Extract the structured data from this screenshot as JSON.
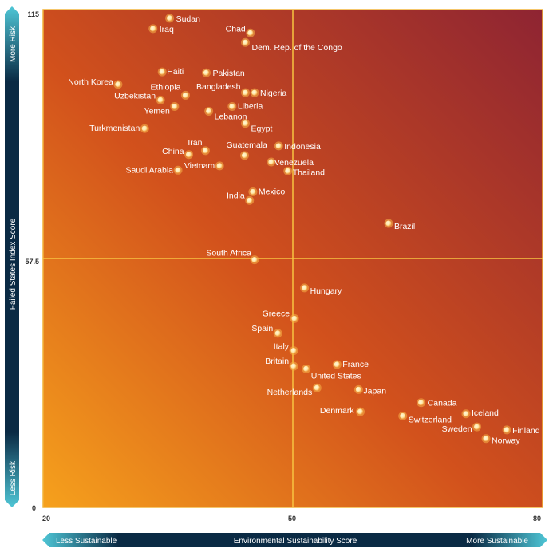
{
  "chart_data": {
    "type": "scatter",
    "title": "",
    "xlabel": "Environmental Sustainability Score",
    "ylabel": "Failed States Index Score",
    "xlim": [
      20,
      80
    ],
    "ylim": [
      0,
      115
    ],
    "x_ticks": [
      "20",
      "50",
      "80"
    ],
    "y_ticks": [
      "0",
      "57.5",
      "115"
    ],
    "quadrant_lines": {
      "x": 50,
      "y": 57.5
    },
    "x_axis_left_label": "Less Sustainable",
    "x_axis_right_label": "More Sustainable",
    "y_axis_top_label": "More Risk",
    "y_axis_bottom_label": "Less Risk",
    "grid": false,
    "colors": {
      "background_low": "#f6a11c",
      "background_mid": "#d2511c",
      "background_high": "#8e2432",
      "marker": "#ffe9a8",
      "marker_core": "#fff6dc",
      "axis_bar": "#0a2a44",
      "axis_accent": "#4fc6d6"
    },
    "points": [
      {
        "name": "Sudan",
        "x": 35.2,
        "y": 113.0
      },
      {
        "name": "Iraq",
        "x": 33.2,
        "y": 110.6
      },
      {
        "name": "Chad",
        "x": 44.9,
        "y": 109.6
      },
      {
        "name": "Dem. Rep. of the Congo",
        "x": 44.3,
        "y": 107.4
      },
      {
        "name": "Haiti",
        "x": 34.3,
        "y": 100.6
      },
      {
        "name": "Pakistan",
        "x": 39.6,
        "y": 100.4
      },
      {
        "name": "North Korea",
        "x": 29.0,
        "y": 97.7
      },
      {
        "name": "Bangladesh",
        "x": 44.3,
        "y": 95.8
      },
      {
        "name": "Nigeria",
        "x": 45.4,
        "y": 95.8
      },
      {
        "name": "Ethiopia",
        "x": 37.1,
        "y": 95.2
      },
      {
        "name": "Uzbekistan",
        "x": 34.1,
        "y": 94.1
      },
      {
        "name": "Yemen",
        "x": 35.8,
        "y": 92.6
      },
      {
        "name": "Liberia",
        "x": 42.7,
        "y": 92.6
      },
      {
        "name": "Lebanon",
        "x": 39.9,
        "y": 91.5
      },
      {
        "name": "Egypt",
        "x": 44.3,
        "y": 88.7
      },
      {
        "name": "Turkmenistan",
        "x": 32.2,
        "y": 87.5
      },
      {
        "name": "Indonesia",
        "x": 48.3,
        "y": 83.5
      },
      {
        "name": "Iran",
        "x": 39.5,
        "y": 82.4
      },
      {
        "name": "China",
        "x": 37.5,
        "y": 81.5
      },
      {
        "name": "Guatemala",
        "x": 44.2,
        "y": 81.3
      },
      {
        "name": "Venezuela",
        "x": 47.4,
        "y": 79.8
      },
      {
        "name": "Vietnam",
        "x": 41.2,
        "y": 78.9
      },
      {
        "name": "Saudi Arabia",
        "x": 36.2,
        "y": 77.9
      },
      {
        "name": "Thailand",
        "x": 49.4,
        "y": 77.7
      },
      {
        "name": "Mexico",
        "x": 45.2,
        "y": 72.9
      },
      {
        "name": "India",
        "x": 44.8,
        "y": 70.9
      },
      {
        "name": "Brazil",
        "x": 61.5,
        "y": 65.6
      },
      {
        "name": "South Africa",
        "x": 45.4,
        "y": 57.2
      },
      {
        "name": "Hungary",
        "x": 51.4,
        "y": 50.7
      },
      {
        "name": "Greece",
        "x": 50.2,
        "y": 43.6
      },
      {
        "name": "Spain",
        "x": 48.2,
        "y": 40.2
      },
      {
        "name": "Italy",
        "x": 50.1,
        "y": 36.2
      },
      {
        "name": "Britain",
        "x": 50.1,
        "y": 32.6
      },
      {
        "name": "France",
        "x": 55.3,
        "y": 33.0
      },
      {
        "name": "United States",
        "x": 51.6,
        "y": 32.0
      },
      {
        "name": "Netherlands",
        "x": 52.9,
        "y": 27.6
      },
      {
        "name": "Japan",
        "x": 57.9,
        "y": 27.2
      },
      {
        "name": "Canada",
        "x": 65.4,
        "y": 24.2
      },
      {
        "name": "Iceland",
        "x": 70.8,
        "y": 21.6
      },
      {
        "name": "Denmark",
        "x": 58.1,
        "y": 22.1
      },
      {
        "name": "Switzerland",
        "x": 63.2,
        "y": 21.1
      },
      {
        "name": "Sweden",
        "x": 72.1,
        "y": 18.6
      },
      {
        "name": "Finland",
        "x": 75.7,
        "y": 17.9
      },
      {
        "name": "Norway",
        "x": 73.2,
        "y": 15.9
      }
    ]
  }
}
